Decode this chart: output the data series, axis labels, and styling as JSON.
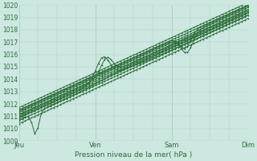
{
  "xlabel": "Pression niveau de la mer( hPa )",
  "bg_color": "#cce8e0",
  "plot_bg_color": "#cce8e0",
  "grid_color": "#aacccc",
  "line_color": "#2d6e3a",
  "ylim": [
    1009,
    1020
  ],
  "yticks": [
    1009,
    1010,
    1011,
    1012,
    1013,
    1014,
    1015,
    1016,
    1017,
    1018,
    1019,
    1020
  ],
  "xtick_labels": [
    "Jeu",
    "Ven",
    "Sam",
    "Dim"
  ],
  "xtick_positions": [
    0,
    1,
    2,
    3
  ]
}
